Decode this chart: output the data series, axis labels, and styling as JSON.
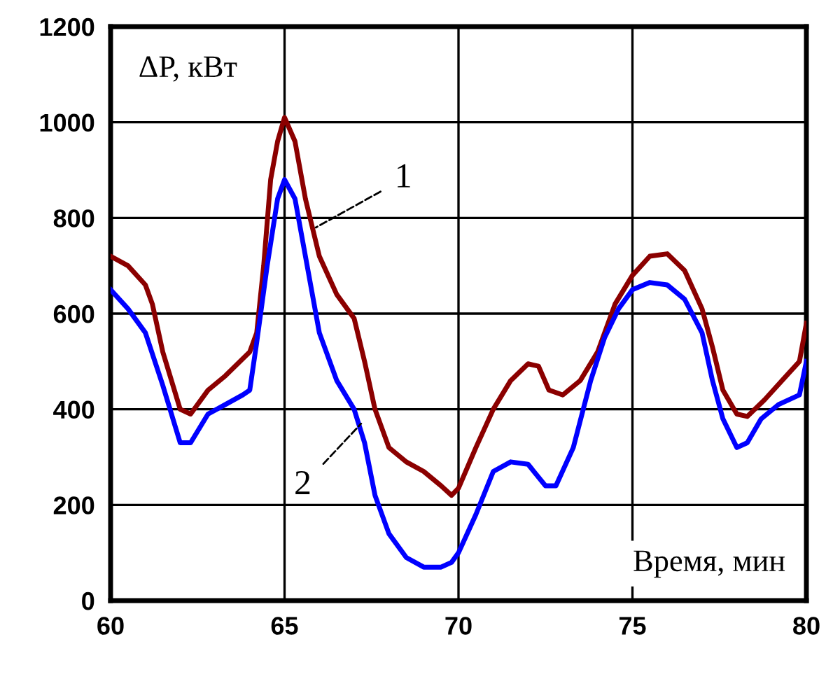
{
  "chart_data": {
    "type": "line",
    "xlabel": "Время, мин",
    "ylabel": "ΔP, кВт",
    "xlim": [
      60,
      80
    ],
    "xticks": [
      60,
      65,
      70,
      75,
      80
    ],
    "ylim": [
      0,
      1200
    ],
    "yticks": [
      0,
      200,
      400,
      600,
      800,
      1000,
      1200
    ],
    "grid": true,
    "marker": "none",
    "line_style": "solid",
    "series": [
      {
        "color": "#8b0000",
        "x": [
          60,
          60.5,
          61,
          61.2,
          61.5,
          62,
          62.3,
          62.8,
          63.3,
          64,
          64.2,
          64.4,
          64.6,
          64.8,
          65,
          65.3,
          65.6,
          66,
          66.5,
          67,
          67.3,
          67.6,
          68,
          68.5,
          69,
          69.5,
          69.8,
          70,
          70.5,
          71,
          71.5,
          72,
          72.3,
          72.6,
          73,
          73.5,
          74,
          74.5,
          75,
          75.5,
          76,
          76.5,
          77,
          77.3,
          77.6,
          78,
          78.3,
          78.8,
          79.3,
          79.8,
          80
        ],
        "values": [
          720,
          700,
          660,
          620,
          520,
          400,
          390,
          440,
          470,
          520,
          560,
          700,
          880,
          960,
          1010,
          960,
          840,
          720,
          640,
          590,
          500,
          400,
          320,
          290,
          270,
          240,
          220,
          235,
          320,
          400,
          460,
          495,
          490,
          440,
          430,
          460,
          520,
          620,
          680,
          720,
          725,
          690,
          610,
          530,
          440,
          390,
          385,
          420,
          460,
          500,
          580
        ]
      },
      {
        "color": "#0000ff",
        "x": [
          60,
          60.5,
          61,
          61.5,
          62,
          62.3,
          62.8,
          63.3,
          63.8,
          64,
          64.2,
          64.5,
          64.8,
          65,
          65.3,
          65.6,
          66,
          66.5,
          67,
          67.3,
          67.6,
          68,
          68.5,
          69,
          69.5,
          69.8,
          70,
          70.5,
          71,
          71.5,
          72,
          72.5,
          72.8,
          73.3,
          73.8,
          74.2,
          74.6,
          75,
          75.5,
          76,
          76.5,
          77,
          77.3,
          77.6,
          78,
          78.3,
          78.7,
          79.2,
          79.8,
          80
        ],
        "values": [
          650,
          610,
          560,
          450,
          330,
          330,
          390,
          410,
          430,
          440,
          540,
          700,
          840,
          880,
          840,
          720,
          560,
          460,
          400,
          330,
          220,
          140,
          90,
          70,
          70,
          80,
          100,
          180,
          270,
          290,
          285,
          240,
          240,
          320,
          460,
          550,
          610,
          650,
          665,
          660,
          630,
          560,
          460,
          380,
          320,
          330,
          380,
          410,
          430,
          500
        ]
      }
    ],
    "annotations": [
      {
        "text": "1",
        "x": 65.9,
        "y": 780
      },
      {
        "text": "2",
        "x": 67.2,
        "y": 370
      }
    ]
  }
}
